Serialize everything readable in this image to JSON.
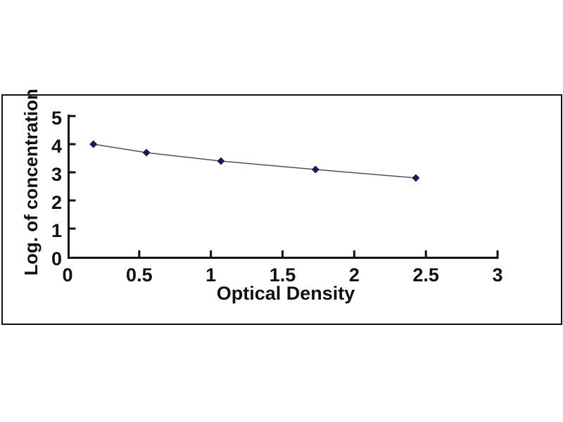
{
  "chart_data": {
    "type": "line",
    "title": "",
    "xlabel": "Optical Density",
    "ylabel": "Log. of concentration",
    "points": [
      {
        "x": 0.18,
        "y": 4.0
      },
      {
        "x": 0.55,
        "y": 3.7
      },
      {
        "x": 1.07,
        "y": 3.4
      },
      {
        "x": 1.73,
        "y": 3.1
      },
      {
        "x": 2.43,
        "y": 2.8
      }
    ],
    "xlim": [
      0,
      3
    ],
    "ylim": [
      0,
      5
    ],
    "x_ticks": [
      {
        "value": 0,
        "label": "0"
      },
      {
        "value": 0.5,
        "label": "0.5"
      },
      {
        "value": 1,
        "label": "1"
      },
      {
        "value": 1.5,
        "label": "1.5"
      },
      {
        "value": 2,
        "label": "2"
      },
      {
        "value": 2.5,
        "label": "2.5"
      },
      {
        "value": 3,
        "label": "3"
      }
    ],
    "y_ticks": [
      {
        "value": 0,
        "label": "0"
      },
      {
        "value": 1,
        "label": "1"
      },
      {
        "value": 2,
        "label": "2"
      },
      {
        "value": 3,
        "label": "3"
      },
      {
        "value": 4,
        "label": "4"
      },
      {
        "value": 5,
        "label": "5"
      }
    ],
    "marker": "diamond",
    "grid": false,
    "legend": "none",
    "colors": {
      "background": "#ffffff",
      "frame": "#101010",
      "axis": "#111111",
      "text": "#111111",
      "marker": "#1a1a55",
      "line": "#50505f"
    }
  }
}
